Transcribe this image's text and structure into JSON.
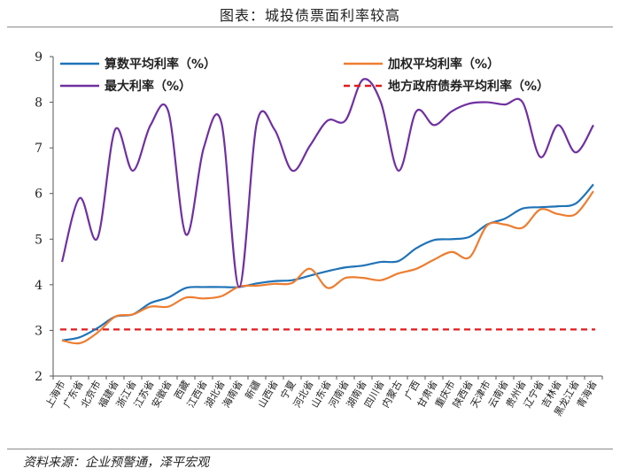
{
  "title": "图表：城投债票面利率较高",
  "source": "资料来源：企业预警通，泽平宏观",
  "colors": {
    "avg": "#1f73b7",
    "weighted": "#ed7d31",
    "max": "#7030a0",
    "local_avg": "#e41a1c"
  },
  "chart_data": {
    "type": "line",
    "ylim": [
      2,
      9
    ],
    "yticks": [
      2,
      3,
      4,
      5,
      6,
      7,
      8,
      9
    ],
    "grid": false,
    "legend": "top",
    "categories": [
      "上海市",
      "广东省",
      "北京市",
      "福建省",
      "浙江省",
      "江苏省",
      "安徽省",
      "西藏",
      "江西省",
      "湖北省",
      "海南省",
      "新疆",
      "山西省",
      "宁夏",
      "河北省",
      "山东省",
      "河南省",
      "湖南省",
      "四川省",
      "内蒙古",
      "广西",
      "甘肃省",
      "重庆市",
      "陕西省",
      "天津市",
      "云南省",
      "贵州省",
      "辽宁省",
      "吉林省",
      "黑龙江省",
      "青海省"
    ],
    "series": [
      {
        "name": "算数平均利率（%）",
        "color_key": "avg",
        "style": "solid",
        "values": [
          2.78,
          2.85,
          3.05,
          3.3,
          3.35,
          3.6,
          3.72,
          3.93,
          3.95,
          3.95,
          3.95,
          4.03,
          4.08,
          4.1,
          4.2,
          4.3,
          4.38,
          4.42,
          4.5,
          4.52,
          4.8,
          4.98,
          5.0,
          5.05,
          5.32,
          5.45,
          5.67,
          5.7,
          5.72,
          5.78,
          6.2
        ]
      },
      {
        "name": "加权平均利率（%）",
        "color_key": "weighted",
        "style": "solid",
        "values": [
          2.78,
          2.72,
          2.95,
          3.3,
          3.35,
          3.52,
          3.52,
          3.72,
          3.7,
          3.75,
          3.96,
          3.98,
          4.02,
          4.04,
          4.35,
          3.93,
          4.15,
          4.15,
          4.1,
          4.25,
          4.35,
          4.55,
          4.72,
          4.6,
          5.3,
          5.32,
          5.25,
          5.65,
          5.55,
          5.55,
          6.05
        ]
      },
      {
        "name": "最大利率（%）",
        "color_key": "max",
        "style": "solid",
        "values": [
          4.5,
          5.9,
          5.02,
          7.4,
          6.5,
          7.5,
          7.8,
          5.1,
          7.0,
          7.55,
          3.95,
          7.55,
          7.4,
          6.5,
          7.05,
          7.6,
          7.6,
          8.5,
          8.0,
          6.5,
          7.8,
          7.5,
          7.8,
          7.97,
          8.0,
          7.95,
          8.0,
          6.8,
          7.5,
          6.9,
          7.5
        ]
      },
      {
        "name": "地方政府债券平均利率（%）",
        "color_key": "local_avg",
        "style": "dashed",
        "values": [
          3.02,
          3.02,
          3.02,
          3.02,
          3.02,
          3.02,
          3.02,
          3.02,
          3.02,
          3.02,
          3.02,
          3.02,
          3.02,
          3.02,
          3.02,
          3.02,
          3.02,
          3.02,
          3.02,
          3.02,
          3.02,
          3.02,
          3.02,
          3.02,
          3.02,
          3.02,
          3.02,
          3.02,
          3.02,
          3.02,
          3.02
        ]
      }
    ]
  }
}
